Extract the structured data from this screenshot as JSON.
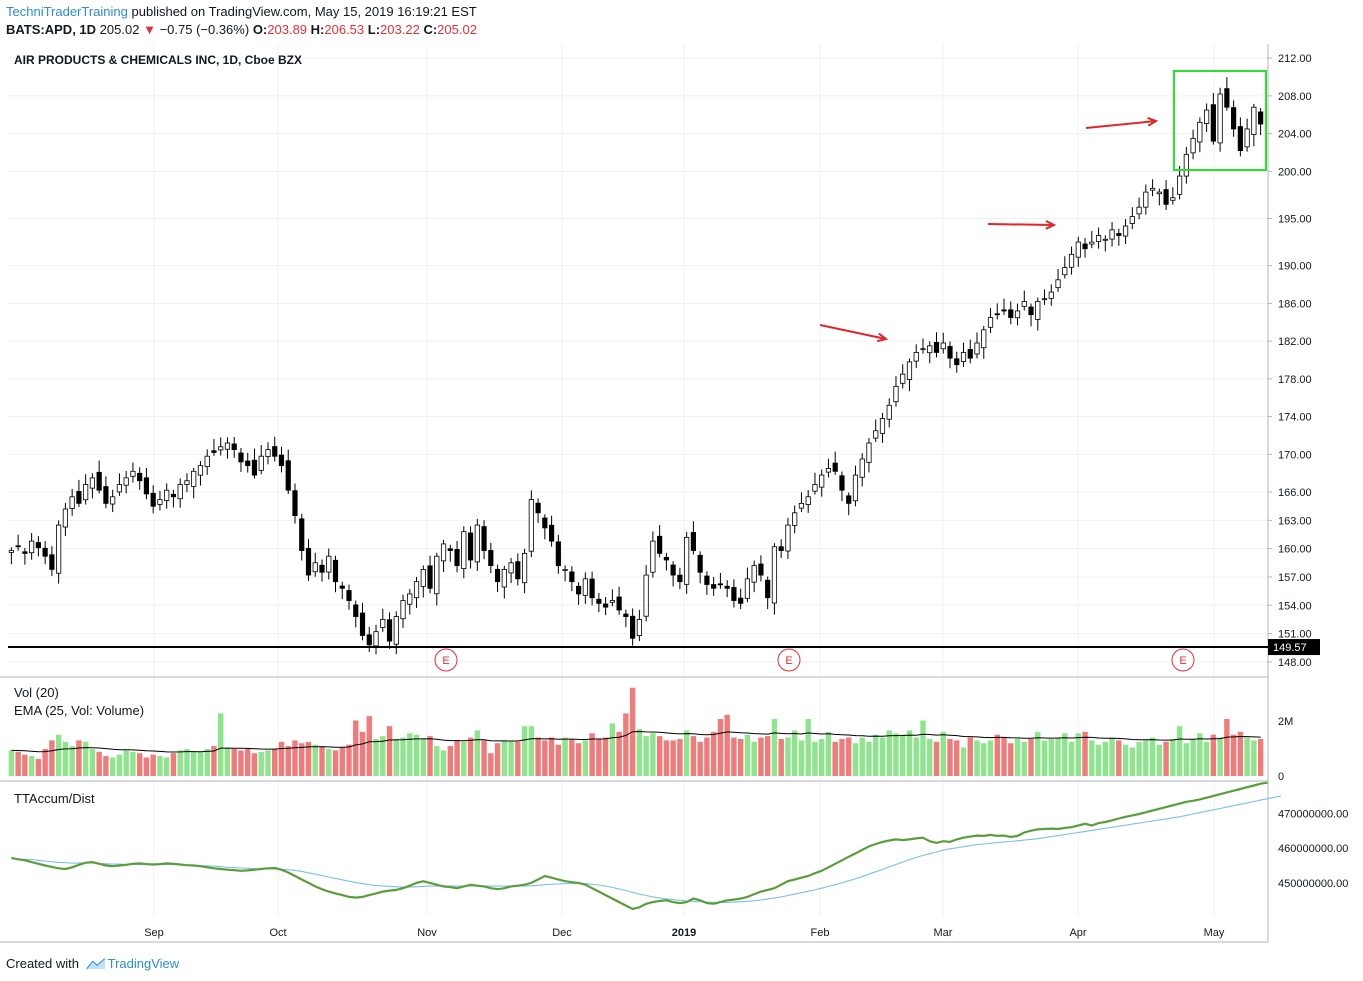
{
  "header": {
    "publisher": "TechniTraderTraining",
    "published_text": "published on TradingView.com, May 15, 2019 16:19:21 EST",
    "symbol": "BATS:APD, 1D",
    "last": "205.02",
    "change_arrow": "▼",
    "change": "−0.75 (−0.36%)",
    "o_label": "O:",
    "o_value": "203.89",
    "h_label": "H:",
    "h_value": "206.53",
    "l_label": "L:",
    "l_value": "203.22",
    "c_label": "C:",
    "c_value": "205.02"
  },
  "footer": {
    "created_with": "Created with",
    "brand": "TradingView"
  },
  "colors": {
    "up_volume": "#8ee58e",
    "down_volume": "#ef7b7b",
    "accum": "#5a9e3c",
    "accum_ma": "#7fbfe6",
    "arrow": "#e0262b",
    "box": "#2ee02e",
    "earnings": "#e0303a",
    "grid": "#eef0f3"
  },
  "chart_data": [
    {
      "type": "candlestick",
      "title": "AIR PRODUCTS & CHEMICALS INC, 1D, Cboe BZX",
      "yticks": [
        "212.00",
        "208.00",
        "204.00",
        "200.00",
        "195.00",
        "190.00",
        "186.00",
        "182.00",
        "178.00",
        "174.00",
        "170.00",
        "166.00",
        "163.00",
        "160.00",
        "157.00",
        "154.00",
        "151.00",
        "148.00"
      ],
      "ylim": [
        146.5,
        213.5
      ],
      "x_labels": [
        "Sep",
        "Oct",
        "Nov",
        "Dec",
        "2019",
        "Feb",
        "Mar",
        "Apr",
        "May"
      ],
      "support_level": 149.57,
      "support_label": "149.57",
      "earnings_marker": "E",
      "earnings_count": 3,
      "arrow_count": 3,
      "grid": true,
      "closes": [
        159.8,
        160.2,
        159.5,
        160.8,
        160.1,
        159.2,
        157.8,
        162.5,
        164.2,
        165.5,
        164.8,
        166.8,
        167.5,
        166.2,
        164.8,
        165.5,
        166.8,
        167.5,
        168.2,
        167.2,
        165.8,
        164.5,
        165.2,
        166.2,
        165.5,
        166.8,
        167.2,
        168.2,
        168.8,
        169.8,
        170.2,
        170.8,
        171.2,
        170.5,
        169.2,
        168.8,
        167.8,
        169.8,
        170.5,
        169.8,
        168.8,
        166.2,
        163.5,
        159.8,
        157.2,
        158.5,
        157.5,
        159.2,
        156.5,
        155.8,
        154.5,
        152.8,
        150.8,
        149.8,
        151.2,
        152.5,
        150.2,
        152.8,
        154.5,
        155.2,
        156.5,
        157.8,
        155.8,
        159.2,
        160.5,
        159.8,
        158.2,
        161.8,
        158.8,
        162.5,
        159.8,
        158.2,
        156.5,
        157.8,
        158.5,
        156.8,
        159.5,
        165.2,
        163.8,
        162.2,
        160.8,
        158.2,
        157.8,
        156.5,
        155.2,
        156.8,
        154.8,
        154.2,
        153.8,
        154.5,
        153.5,
        152.8,
        150.5,
        152.5,
        157.2,
        160.8,
        159.5,
        158.8,
        157.2,
        156.5,
        161.2,
        159.8,
        157.5,
        156.2,
        155.8,
        156.2,
        155.8,
        154.5,
        154.2,
        156.8,
        158.2,
        157.2,
        154.8,
        160.2,
        159.8,
        162.5,
        163.8,
        164.8,
        165.5,
        166.8,
        167.8,
        168.5,
        168.2,
        166.2,
        164.8,
        167.8,
        169.5,
        171.2,
        172.5,
        173.8,
        175.2,
        177.2,
        178.5,
        179.8,
        180.8,
        181.2,
        181.5,
        180.8,
        181.8,
        180.2,
        179.5,
        180.8,
        180.2,
        181.8,
        183.2,
        184.5,
        184.8,
        185.2,
        184.5,
        185.2,
        186.2,
        184.8,
        186.2,
        186.5,
        187.2,
        188.5,
        189.8,
        191.2,
        192.5,
        191.8,
        192.5,
        193.2,
        192.8,
        193.8,
        193.2,
        194.2,
        195.2,
        196.2,
        197.8,
        198.2,
        197.8,
        196.5,
        197.2,
        199.5,
        201.8,
        203.5,
        205.2,
        206.5,
        203.2,
        208.2,
        206.8,
        204.5,
        202.2,
        204.5,
        206.8,
        205.02
      ],
      "volume_label": "Vol (20)",
      "volume_ema_label": "EMA (25, Vol: Volume)",
      "volume_yticks": [
        "2M",
        "0"
      ],
      "volumes": [
        0.9,
        0.85,
        0.75,
        0.7,
        0.6,
        0.95,
        1.25,
        1.45,
        1.2,
        1.05,
        1.25,
        1.2,
        0.95,
        0.85,
        0.7,
        0.65,
        0.75,
        0.9,
        0.85,
        0.8,
        0.65,
        0.75,
        0.7,
        0.65,
        0.8,
        0.9,
        0.95,
        0.85,
        0.85,
        0.95,
        1.05,
        2.2,
        1.0,
        0.95,
        0.9,
        0.95,
        0.8,
        0.85,
        0.9,
        0.95,
        1.2,
        1.05,
        1.25,
        1.15,
        1.2,
        1.1,
        1.05,
        0.95,
        0.9,
        1.0,
        1.1,
        1.95,
        1.55,
        2.1,
        1.3,
        1.4,
        1.75,
        1.3,
        1.35,
        1.5,
        1.45,
        1.3,
        1.4,
        1.05,
        0.9,
        1.05,
        1.25,
        1.2,
        1.35,
        1.6,
        1.25,
        0.8,
        1.15,
        1.25,
        1.2,
        1.2,
        1.75,
        1.75,
        1.35,
        1.25,
        1.35,
        1.1,
        1.35,
        1.3,
        1.15,
        1.25,
        1.5,
        1.3,
        1.35,
        1.85,
        1.55,
        2.2,
        3.1,
        1.65,
        1.4,
        1.5,
        1.4,
        1.25,
        1.25,
        1.3,
        1.6,
        1.4,
        1.2,
        1.35,
        1.55,
        2.0,
        2.15,
        1.35,
        1.3,
        1.45,
        1.2,
        1.35,
        1.4,
        2.0,
        1.3,
        1.35,
        1.6,
        1.25,
        2.0,
        1.2,
        1.3,
        1.55,
        1.2,
        1.3,
        1.35,
        1.15,
        1.35,
        1.2,
        1.45,
        1.35,
        1.6,
        1.5,
        1.45,
        1.6,
        1.35,
        1.95,
        1.3,
        1.2,
        1.55,
        1.3,
        1.25,
        1.0,
        1.35,
        1.25,
        1.15,
        1.25,
        1.45,
        1.35,
        1.15,
        1.3,
        1.2,
        1.3,
        1.55,
        1.25,
        1.3,
        1.35,
        1.5,
        1.2,
        1.5,
        1.55,
        1.25,
        1.1,
        1.2,
        1.35,
        1.25,
        1.1,
        1.0,
        1.2,
        1.25,
        1.35,
        1.1,
        1.2,
        1.3,
        1.75,
        1.15,
        1.3,
        1.5,
        1.2,
        1.45,
        1.35,
        2.0,
        1.45,
        1.55,
        1.35,
        1.25,
        1.3,
        1.4
      ]
    },
    {
      "type": "line",
      "title": "TTAccum/Dist",
      "yticks": [
        "470000000.00",
        "460000000.00",
        "450000000.00"
      ],
      "ylim": [
        440500000,
        479000000
      ],
      "series": [
        {
          "values": [
            457.2,
            456.8,
            456.5,
            456.0,
            455.5,
            455.0,
            454.6,
            454.2,
            454.0,
            454.5,
            455.2,
            455.8,
            456.0,
            455.5,
            455.0,
            454.8,
            455.0,
            455.2,
            455.5,
            455.6,
            455.4,
            455.3,
            455.4,
            455.6,
            455.5,
            455.3,
            455.1,
            455.0,
            454.8,
            454.5,
            454.2,
            454.0,
            453.8,
            453.7,
            453.5,
            453.6,
            453.8,
            454.0,
            454.2,
            454.3,
            453.8,
            453.0,
            452.0,
            451.0,
            450.0,
            449.0,
            448.2,
            447.5,
            447.0,
            446.5,
            446.0,
            445.8,
            446.0,
            446.5,
            447.0,
            447.5,
            447.8,
            448.0,
            448.5,
            449.2,
            450.0,
            450.5,
            450.0,
            449.5,
            449.0,
            448.8,
            448.5,
            449.0,
            449.5,
            449.2,
            449.0,
            448.5,
            448.2,
            448.5,
            449.0,
            449.2,
            449.5,
            450.0,
            451.0,
            452.0,
            451.5,
            451.0,
            450.5,
            450.2,
            450.0,
            449.5,
            448.5,
            447.5,
            446.5,
            445.5,
            444.5,
            443.5,
            442.5,
            443.0,
            444.0,
            444.5,
            444.8,
            445.0,
            444.5,
            444.2,
            444.5,
            445.5,
            445.0,
            444.2,
            444.0,
            444.5,
            445.0,
            445.2,
            445.5,
            446.0,
            446.8,
            447.5,
            448.0,
            448.5,
            449.5,
            450.5,
            451.0,
            451.5,
            452.0,
            452.8,
            453.5,
            454.5,
            455.5,
            456.5,
            457.5,
            458.5,
            459.5,
            460.5,
            461.2,
            461.8,
            462.2,
            462.5,
            462.3,
            462.5,
            462.8,
            463.0,
            462.0,
            461.5,
            462.0,
            461.8,
            462.5,
            463.0,
            463.3,
            463.6,
            463.5,
            463.8,
            463.5,
            463.6,
            463.2,
            463.5,
            464.5,
            465.0,
            465.4,
            465.5,
            465.6,
            465.5,
            465.8,
            466.0,
            466.5,
            467.0,
            466.5,
            467.2,
            467.5,
            468.0,
            468.5,
            469.0,
            469.4,
            469.8,
            470.3,
            470.8,
            471.3,
            471.8,
            472.3,
            472.8,
            473.3,
            473.6,
            474.0,
            474.5,
            475.0,
            475.5,
            476.0,
            476.5,
            477.0,
            477.5,
            478.0,
            478.5,
            478.8
          ]
        },
        {
          "values": [
            457.0,
            456.9,
            456.8,
            456.7,
            456.5,
            456.3,
            456.1,
            455.9,
            455.8,
            455.7,
            455.7,
            455.7,
            455.7,
            455.6,
            455.5,
            455.4,
            455.4,
            455.3,
            455.3,
            455.3,
            455.3,
            455.3,
            455.3,
            455.3,
            455.3,
            455.2,
            455.2,
            455.1,
            455.0,
            454.9,
            454.8,
            454.7,
            454.5,
            454.4,
            454.3,
            454.2,
            454.1,
            454.0,
            454.0,
            454.0,
            453.9,
            453.8,
            453.6,
            453.3,
            452.9,
            452.5,
            452.1,
            451.7,
            451.3,
            450.9,
            450.5,
            450.1,
            449.8,
            449.5,
            449.3,
            449.1,
            449.0,
            448.9,
            448.8,
            448.8,
            448.9,
            449.0,
            449.1,
            449.1,
            449.1,
            449.1,
            449.1,
            449.1,
            449.1,
            449.1,
            449.1,
            449.1,
            449.1,
            449.1,
            449.1,
            449.1,
            449.1,
            449.2,
            449.3,
            449.5,
            449.6,
            449.7,
            449.8,
            449.8,
            449.8,
            449.8,
            449.6,
            449.4,
            449.1,
            448.7,
            448.3,
            447.8,
            447.3,
            446.8,
            446.4,
            446.0,
            445.7,
            445.4,
            445.2,
            445.0,
            444.8,
            444.7,
            444.6,
            444.5,
            444.4,
            444.4,
            444.4,
            444.5,
            444.6,
            444.7,
            444.9,
            445.1,
            445.4,
            445.7,
            446.0,
            446.4,
            446.8,
            447.2,
            447.6,
            448.0,
            448.5,
            449.0,
            449.5,
            450.0,
            450.6,
            451.2,
            451.8,
            452.5,
            453.2,
            453.9,
            454.6,
            455.3,
            456.0,
            456.7,
            457.3,
            457.9,
            458.4,
            458.9,
            459.4,
            459.8,
            460.1,
            460.4,
            460.7,
            461.0,
            461.2,
            461.4,
            461.6,
            461.8,
            461.9,
            462.1,
            462.3,
            462.5,
            462.7,
            463.0,
            463.3,
            463.6,
            463.9,
            464.2,
            464.5,
            464.8,
            465.1,
            465.4,
            465.7,
            466.0,
            466.3,
            466.6,
            466.9,
            467.2,
            467.5,
            467.8,
            468.1,
            468.4,
            468.7,
            469.0,
            469.4,
            469.8,
            470.2,
            470.6,
            471.0,
            471.4,
            471.8,
            472.2,
            472.6,
            473.0,
            473.4,
            473.8,
            474.2,
            474.6,
            475.0
          ]
        }
      ]
    }
  ]
}
